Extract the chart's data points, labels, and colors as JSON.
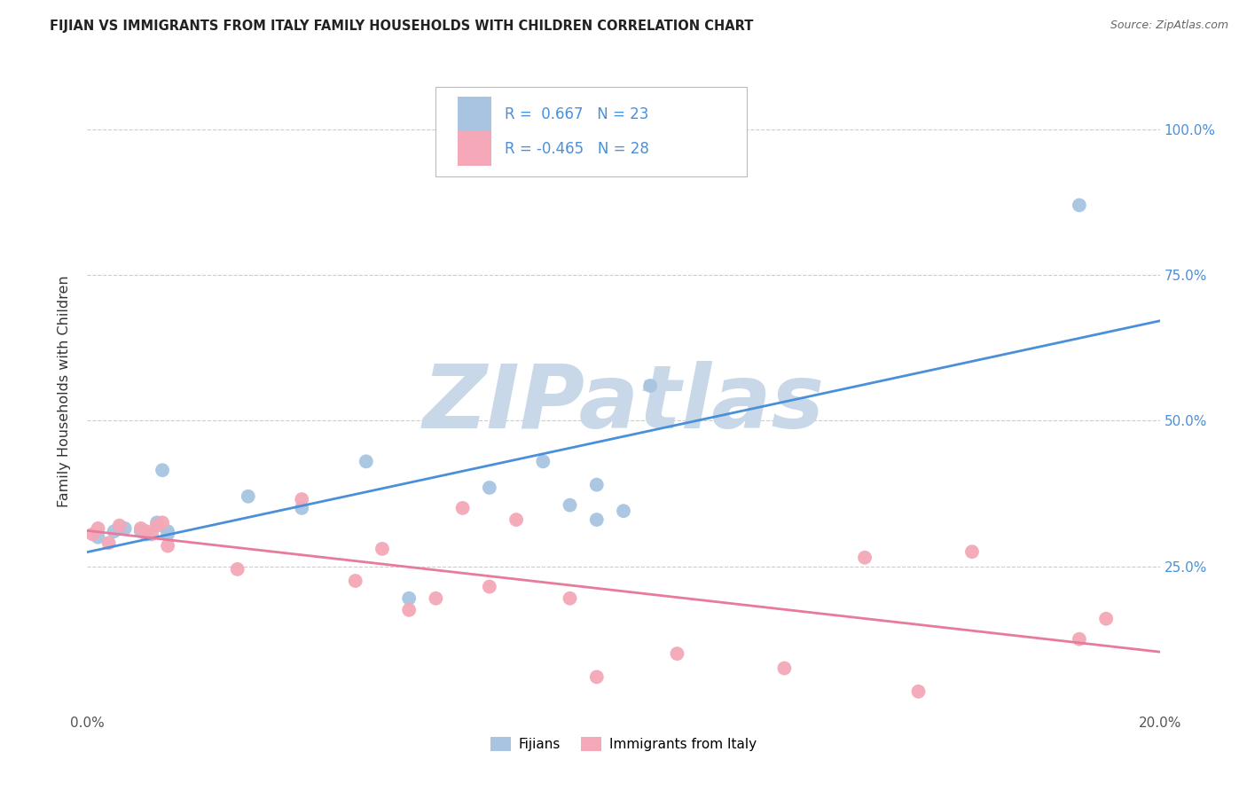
{
  "title": "FIJIAN VS IMMIGRANTS FROM ITALY FAMILY HOUSEHOLDS WITH CHILDREN CORRELATION CHART",
  "source": "Source: ZipAtlas.com",
  "ylabel": "Family Households with Children",
  "x_min": 0.0,
  "x_max": 0.2,
  "y_min": 0.0,
  "y_max": 1.1,
  "x_ticks": [
    0.0,
    0.05,
    0.1,
    0.15,
    0.2
  ],
  "x_tick_labels": [
    "0.0%",
    "",
    "",
    "",
    "20.0%"
  ],
  "y_ticks": [
    0.25,
    0.5,
    0.75,
    1.0
  ],
  "y_tick_labels": [
    "25.0%",
    "50.0%",
    "75.0%",
    "100.0%"
  ],
  "fijian_color": "#a8c4e0",
  "italy_color": "#f4a8b8",
  "fijian_line_color": "#4a90d9",
  "italy_line_color": "#e87a9a",
  "legend_box_fijian": "#a8c4e0",
  "legend_box_italy": "#f4a8b8",
  "legend_text_color": "#4a90d9",
  "R_fijian": 0.667,
  "N_fijian": 23,
  "R_italy": -0.465,
  "N_italy": 28,
  "fijian_x": [
    0.002,
    0.005,
    0.006,
    0.007,
    0.01,
    0.011,
    0.013,
    0.013,
    0.014,
    0.015,
    0.015,
    0.03,
    0.04,
    0.052,
    0.06,
    0.075,
    0.085,
    0.09,
    0.095,
    0.095,
    0.1,
    0.105,
    0.185
  ],
  "fijian_y": [
    0.3,
    0.31,
    0.315,
    0.315,
    0.31,
    0.305,
    0.32,
    0.325,
    0.415,
    0.305,
    0.31,
    0.37,
    0.35,
    0.43,
    0.195,
    0.385,
    0.43,
    0.355,
    0.33,
    0.39,
    0.345,
    0.56,
    0.87
  ],
  "italy_x": [
    0.001,
    0.002,
    0.004,
    0.006,
    0.01,
    0.011,
    0.012,
    0.013,
    0.014,
    0.015,
    0.028,
    0.04,
    0.05,
    0.055,
    0.06,
    0.065,
    0.07,
    0.075,
    0.08,
    0.09,
    0.095,
    0.11,
    0.13,
    0.145,
    0.155,
    0.165,
    0.185,
    0.19
  ],
  "italy_y": [
    0.305,
    0.315,
    0.29,
    0.32,
    0.315,
    0.31,
    0.305,
    0.32,
    0.325,
    0.285,
    0.245,
    0.365,
    0.225,
    0.28,
    0.175,
    0.195,
    0.35,
    0.215,
    0.33,
    0.195,
    0.06,
    0.1,
    0.075,
    0.265,
    0.035,
    0.275,
    0.125,
    0.16
  ],
  "grid_color": "#cccccc",
  "background_color": "#ffffff",
  "watermark": "ZIPatlas",
  "watermark_color": "#c8d8e8",
  "watermark_fontsize": 72
}
